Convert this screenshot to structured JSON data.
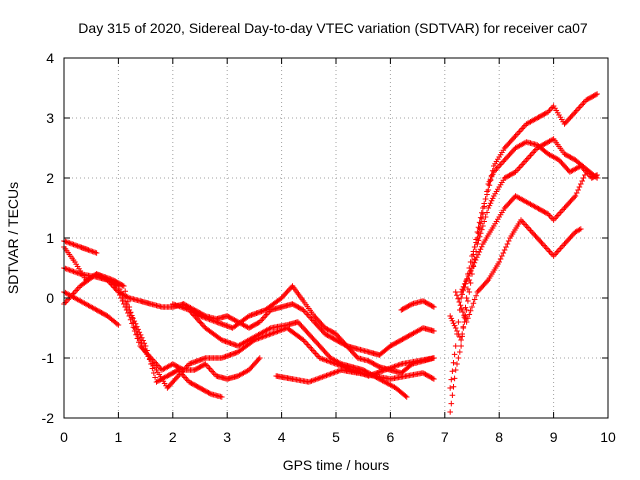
{
  "chart_data": {
    "type": "scatter",
    "title": "Day 315 of 2020, Sidereal Day-to-day VTEC variation (SDTVAR) for receiver ca07",
    "xlabel": "GPS time / hours",
    "ylabel": "SDTVAR / TECUs",
    "xlim": [
      0,
      10
    ],
    "ylim": [
      -2,
      4
    ],
    "xticks": [
      "0",
      "1",
      "2",
      "3",
      "4",
      "5",
      "6",
      "7",
      "8",
      "9",
      "10"
    ],
    "yticks": [
      "-2",
      "-1",
      "0",
      "1",
      "2",
      "3",
      "4"
    ],
    "grid": true,
    "marker": "+",
    "color": "#ff0000",
    "series": [
      {
        "name": "trace-1",
        "points": [
          [
            0.0,
            0.95
          ],
          [
            0.15,
            0.9
          ],
          [
            0.3,
            0.85
          ],
          [
            0.45,
            0.8
          ],
          [
            0.6,
            0.75
          ]
        ]
      },
      {
        "name": "trace-2",
        "points": [
          [
            0.0,
            0.85
          ],
          [
            0.2,
            0.6
          ],
          [
            0.4,
            0.3
          ],
          [
            0.6,
            0.4
          ],
          [
            0.8,
            0.3
          ],
          [
            1.0,
            0.2
          ],
          [
            1.2,
            -0.2
          ],
          [
            1.5,
            -0.8
          ],
          [
            1.7,
            -1.4
          ],
          [
            1.9,
            -1.3
          ],
          [
            2.1,
            -1.2
          ],
          [
            2.3,
            -1.4
          ],
          [
            2.5,
            -1.5
          ],
          [
            2.7,
            -1.6
          ],
          [
            2.9,
            -1.65
          ]
        ]
      },
      {
        "name": "trace-3",
        "points": [
          [
            0.0,
            0.5
          ],
          [
            0.3,
            0.4
          ],
          [
            0.6,
            0.35
          ],
          [
            0.8,
            0.3
          ],
          [
            1.0,
            0.1
          ],
          [
            1.2,
            -0.3
          ],
          [
            1.4,
            -0.8
          ],
          [
            1.6,
            -1.0
          ],
          [
            1.8,
            -1.2
          ],
          [
            2.0,
            -1.1
          ],
          [
            2.2,
            -1.2
          ],
          [
            2.4,
            -1.2
          ],
          [
            2.6,
            -1.1
          ],
          [
            2.8,
            -1.3
          ],
          [
            3.0,
            -1.35
          ],
          [
            3.2,
            -1.3
          ],
          [
            3.4,
            -1.2
          ],
          [
            3.6,
            -1.0
          ]
        ]
      },
      {
        "name": "trace-4",
        "points": [
          [
            0.0,
            0.1
          ],
          [
            0.2,
            0.0
          ],
          [
            0.4,
            -0.1
          ],
          [
            0.6,
            -0.2
          ],
          [
            0.8,
            -0.3
          ],
          [
            1.0,
            -0.45
          ]
        ]
      },
      {
        "name": "trace-5",
        "points": [
          [
            0.0,
            -0.1
          ],
          [
            0.3,
            0.2
          ],
          [
            0.6,
            0.4
          ],
          [
            0.9,
            0.3
          ],
          [
            1.1,
            0.2
          ],
          [
            1.3,
            -0.5
          ],
          [
            1.5,
            -0.9
          ],
          [
            1.7,
            -1.2
          ],
          [
            1.9,
            -1.5
          ],
          [
            2.1,
            -1.3
          ],
          [
            2.3,
            -1.1
          ],
          [
            2.6,
            -1.0
          ],
          [
            2.9,
            -1.0
          ],
          [
            3.2,
            -0.9
          ],
          [
            3.5,
            -0.7
          ],
          [
            3.8,
            -0.6
          ],
          [
            4.1,
            -0.5
          ],
          [
            4.4,
            -0.7
          ],
          [
            4.7,
            -1.0
          ],
          [
            5.0,
            -1.1
          ],
          [
            5.3,
            -1.2
          ],
          [
            5.6,
            -1.3
          ],
          [
            5.9,
            -1.2
          ],
          [
            6.2,
            -1.1
          ],
          [
            6.5,
            -1.05
          ],
          [
            6.8,
            -1.0
          ]
        ]
      },
      {
        "name": "trace-6",
        "points": [
          [
            0.8,
            0.3
          ],
          [
            1.0,
            0.1
          ],
          [
            1.2,
            0.0
          ],
          [
            1.4,
            -0.05
          ],
          [
            1.6,
            -0.1
          ],
          [
            1.8,
            -0.15
          ],
          [
            2.0,
            -0.15
          ],
          [
            2.2,
            -0.1
          ],
          [
            2.4,
            -0.2
          ],
          [
            2.6,
            -0.3
          ],
          [
            2.8,
            -0.35
          ],
          [
            3.0,
            -0.3
          ],
          [
            3.2,
            -0.4
          ],
          [
            3.4,
            -0.5
          ],
          [
            3.6,
            -0.4
          ],
          [
            3.8,
            -0.2
          ],
          [
            4.0,
            -0.15
          ],
          [
            4.2,
            -0.1
          ],
          [
            4.4,
            -0.2
          ],
          [
            4.6,
            -0.4
          ],
          [
            4.8,
            -0.6
          ],
          [
            5.0,
            -0.7
          ],
          [
            5.2,
            -0.8
          ],
          [
            5.4,
            -0.85
          ],
          [
            5.6,
            -0.9
          ],
          [
            5.8,
            -0.95
          ],
          [
            6.0,
            -0.8
          ],
          [
            6.2,
            -0.7
          ],
          [
            6.4,
            -0.6
          ],
          [
            6.6,
            -0.5
          ],
          [
            6.8,
            -0.55
          ]
        ]
      },
      {
        "name": "trace-7",
        "points": [
          [
            2.0,
            -0.1
          ],
          [
            2.3,
            -0.2
          ],
          [
            2.6,
            -0.5
          ],
          [
            2.9,
            -0.7
          ],
          [
            3.2,
            -0.8
          ],
          [
            3.5,
            -0.65
          ],
          [
            3.8,
            -0.5
          ],
          [
            4.1,
            -0.45
          ],
          [
            4.3,
            -0.4
          ],
          [
            4.5,
            -0.6
          ],
          [
            4.7,
            -0.8
          ],
          [
            4.9,
            -1.0
          ],
          [
            5.1,
            -1.1
          ],
          [
            5.3,
            -1.15
          ],
          [
            5.5,
            -1.2
          ],
          [
            5.7,
            -1.3
          ],
          [
            5.9,
            -1.4
          ],
          [
            6.1,
            -1.5
          ],
          [
            6.3,
            -1.65
          ]
        ]
      },
      {
        "name": "trace-8",
        "points": [
          [
            3.9,
            -1.3
          ],
          [
            4.2,
            -1.35
          ],
          [
            4.5,
            -1.4
          ],
          [
            4.8,
            -1.3
          ],
          [
            5.1,
            -1.2
          ],
          [
            5.4,
            -1.25
          ],
          [
            5.7,
            -1.3
          ],
          [
            6.0,
            -1.35
          ],
          [
            6.3,
            -1.3
          ],
          [
            6.6,
            -1.25
          ],
          [
            6.8,
            -1.35
          ]
        ]
      },
      {
        "name": "trace-9",
        "points": [
          [
            2.2,
            -0.1
          ],
          [
            2.5,
            -0.3
          ],
          [
            2.8,
            -0.4
          ],
          [
            3.1,
            -0.5
          ],
          [
            3.4,
            -0.3
          ],
          [
            3.7,
            -0.2
          ],
          [
            4.0,
            0.0
          ],
          [
            4.2,
            0.2
          ],
          [
            4.4,
            -0.05
          ],
          [
            4.6,
            -0.3
          ],
          [
            4.8,
            -0.5
          ],
          [
            5.0,
            -0.6
          ],
          [
            5.2,
            -0.8
          ],
          [
            5.4,
            -1.0
          ],
          [
            5.6,
            -1.05
          ],
          [
            5.8,
            -1.15
          ],
          [
            6.0,
            -1.2
          ],
          [
            6.2,
            -1.25
          ],
          [
            6.4,
            -1.1
          ],
          [
            6.6,
            -1.05
          ],
          [
            6.8,
            -1.0
          ]
        ]
      },
      {
        "name": "trace-10",
        "points": [
          [
            6.2,
            -0.2
          ],
          [
            6.4,
            -0.1
          ],
          [
            6.6,
            -0.05
          ],
          [
            6.8,
            -0.15
          ]
        ]
      },
      {
        "name": "trace-11",
        "points": [
          [
            7.1,
            -1.9
          ],
          [
            7.2,
            -1.2
          ],
          [
            7.3,
            -0.8
          ],
          [
            7.4,
            0.0
          ],
          [
            7.5,
            0.6
          ],
          [
            7.6,
            1.1
          ],
          [
            7.7,
            1.5
          ],
          [
            7.8,
            1.8
          ],
          [
            7.9,
            2.2
          ],
          [
            8.1,
            2.5
          ],
          [
            8.3,
            2.7
          ],
          [
            8.5,
            2.9
          ],
          [
            8.7,
            3.0
          ],
          [
            8.9,
            3.1
          ],
          [
            9.0,
            3.2
          ],
          [
            9.2,
            2.9
          ],
          [
            9.4,
            3.1
          ],
          [
            9.6,
            3.3
          ],
          [
            9.8,
            3.4
          ]
        ]
      },
      {
        "name": "trace-12",
        "points": [
          [
            7.1,
            -0.3
          ],
          [
            7.2,
            -0.5
          ],
          [
            7.3,
            -0.7
          ],
          [
            7.4,
            -0.2
          ],
          [
            7.5,
            0.4
          ],
          [
            7.6,
            0.9
          ],
          [
            7.7,
            1.2
          ],
          [
            7.8,
            1.5
          ],
          [
            7.9,
            1.7
          ],
          [
            8.1,
            2.0
          ],
          [
            8.3,
            2.1
          ],
          [
            8.5,
            2.3
          ],
          [
            8.7,
            2.5
          ],
          [
            8.9,
            2.6
          ],
          [
            9.0,
            2.65
          ],
          [
            9.2,
            2.4
          ],
          [
            9.4,
            2.3
          ],
          [
            9.6,
            2.15
          ],
          [
            9.8,
            2.0
          ]
        ]
      },
      {
        "name": "trace-13",
        "points": [
          [
            7.1,
            -1.5
          ],
          [
            7.2,
            -0.8
          ],
          [
            7.3,
            0.0
          ],
          [
            7.4,
            0.3
          ],
          [
            7.5,
            0.7
          ],
          [
            7.6,
            1.0
          ],
          [
            7.7,
            1.4
          ],
          [
            7.8,
            1.9
          ],
          [
            7.9,
            2.1
          ],
          [
            8.1,
            2.3
          ],
          [
            8.3,
            2.5
          ],
          [
            8.5,
            2.6
          ],
          [
            8.7,
            2.55
          ],
          [
            8.9,
            2.4
          ],
          [
            9.1,
            2.3
          ],
          [
            9.3,
            2.1
          ],
          [
            9.5,
            2.2
          ],
          [
            9.7,
            2.0
          ],
          [
            9.8,
            2.05
          ]
        ]
      },
      {
        "name": "trace-14",
        "points": [
          [
            7.2,
            0.1
          ],
          [
            7.4,
            -0.4
          ],
          [
            7.6,
            0.1
          ],
          [
            7.8,
            0.3
          ],
          [
            8.0,
            0.6
          ],
          [
            8.2,
            1.0
          ],
          [
            8.4,
            1.3
          ],
          [
            8.6,
            1.1
          ],
          [
            8.8,
            0.9
          ],
          [
            9.0,
            0.7
          ],
          [
            9.2,
            0.9
          ],
          [
            9.4,
            1.1
          ],
          [
            9.5,
            1.15
          ]
        ]
      },
      {
        "name": "trace-15",
        "points": [
          [
            7.3,
            0.1
          ],
          [
            7.5,
            0.5
          ],
          [
            7.7,
            0.9
          ],
          [
            7.9,
            1.2
          ],
          [
            8.1,
            1.5
          ],
          [
            8.3,
            1.7
          ],
          [
            8.5,
            1.6
          ],
          [
            8.7,
            1.5
          ],
          [
            8.9,
            1.4
          ],
          [
            9.0,
            1.3
          ],
          [
            9.2,
            1.5
          ],
          [
            9.4,
            1.7
          ],
          [
            9.5,
            1.9
          ],
          [
            9.6,
            2.1
          ]
        ]
      }
    ]
  }
}
